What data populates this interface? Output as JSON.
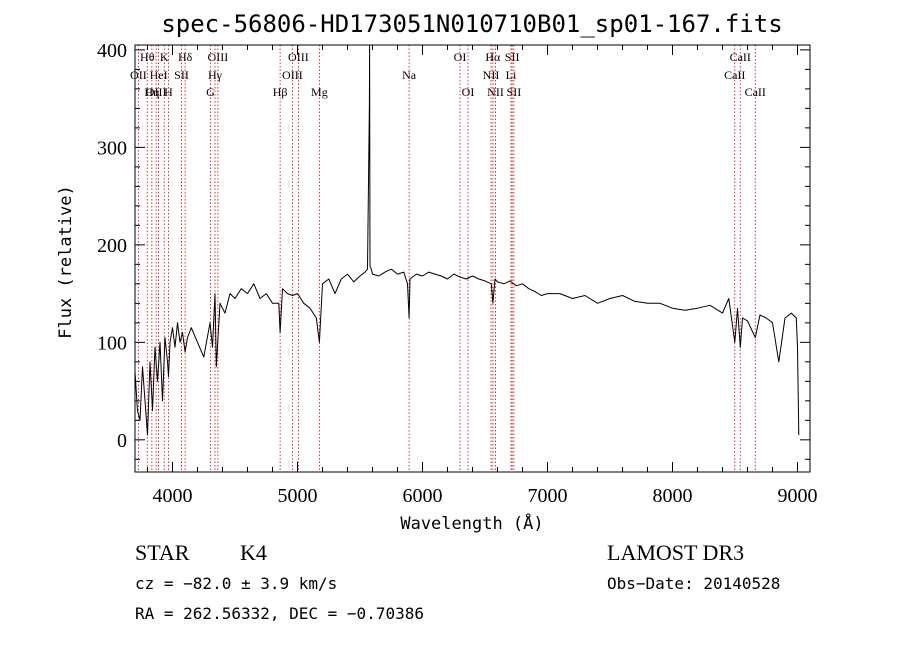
{
  "chart_data": {
    "type": "line",
    "title": "spec-56806-HD173051N010710B01_sp01-167.fits",
    "xlabel": "Wavelength (Å)",
    "ylabel": "Flux (relative)",
    "xlim": [
      3700,
      9100
    ],
    "ylim": [
      -33,
      405
    ],
    "x_ticks": [
      4000,
      5000,
      6000,
      7000,
      8000,
      9000
    ],
    "x_tick_labels": [
      "4000",
      "5000",
      "6000",
      "7000",
      "8000",
      "9000"
    ],
    "y_ticks": [
      0,
      100,
      200,
      300,
      400
    ],
    "y_tick_labels": [
      "0",
      "100",
      "200",
      "300",
      "400"
    ],
    "series": [
      {
        "name": "spectrum",
        "x": [
          3700,
          3720,
          3740,
          3760,
          3780,
          3800,
          3820,
          3840,
          3860,
          3880,
          3900,
          3920,
          3940,
          3960,
          3968,
          3980,
          4000,
          4020,
          4040,
          4060,
          4080,
          4101,
          4120,
          4150,
          4200,
          4250,
          4300,
          4320,
          4340,
          4350,
          4380,
          4420,
          4460,
          4500,
          4550,
          4600,
          4650,
          4700,
          4750,
          4800,
          4850,
          4861,
          4880,
          4920,
          4960,
          5000,
          5050,
          5100,
          5150,
          5175,
          5200,
          5250,
          5300,
          5350,
          5400,
          5450,
          5500,
          5540,
          5560,
          5575,
          5577,
          5580,
          5590,
          5600,
          5650,
          5700,
          5750,
          5800,
          5850,
          5880,
          5893,
          5900,
          5950,
          6000,
          6050,
          6100,
          6150,
          6200,
          6250,
          6300,
          6350,
          6400,
          6450,
          6500,
          6550,
          6563,
          6580,
          6600,
          6650,
          6700,
          6750,
          6800,
          6850,
          6900,
          6950,
          7000,
          7100,
          7200,
          7300,
          7400,
          7500,
          7600,
          7700,
          7800,
          7900,
          8000,
          8100,
          8200,
          8300,
          8400,
          8450,
          8498,
          8520,
          8542,
          8560,
          8600,
          8662,
          8700,
          8750,
          8800,
          8850,
          8900,
          8950,
          8990,
          9000,
          9010
        ],
        "values": [
          70,
          30,
          20,
          75,
          40,
          5,
          80,
          30,
          95,
          60,
          100,
          40,
          105,
          80,
          65,
          100,
          115,
          95,
          120,
          100,
          110,
          90,
          105,
          115,
          100,
          85,
          120,
          95,
          150,
          75,
          140,
          130,
          150,
          145,
          155,
          150,
          160,
          145,
          150,
          140,
          140,
          110,
          155,
          150,
          148,
          150,
          140,
          135,
          125,
          100,
          160,
          165,
          150,
          165,
          170,
          162,
          168,
          172,
          175,
          345,
          405,
          178,
          175,
          170,
          168,
          172,
          175,
          170,
          172,
          160,
          125,
          165,
          170,
          168,
          172,
          170,
          168,
          165,
          170,
          167,
          165,
          168,
          165,
          163,
          160,
          140,
          165,
          162,
          160,
          163,
          158,
          160,
          155,
          152,
          148,
          150,
          150,
          145,
          148,
          140,
          145,
          148,
          142,
          140,
          140,
          135,
          133,
          135,
          138,
          130,
          145,
          100,
          135,
          95,
          125,
          122,
          105,
          128,
          125,
          120,
          80,
          125,
          130,
          125,
          95,
          5
        ]
      }
    ],
    "spectral_lines": [
      {
        "label": "Hθ",
        "wavelength": 3798,
        "row": 0
      },
      {
        "label": "OII",
        "wavelength": 3727,
        "row": 1
      },
      {
        "label": "HeI",
        "wavelength": 3889,
        "row": 1
      },
      {
        "label": "SII",
        "wavelength": 4072,
        "row": 1
      },
      {
        "label": "OIII",
        "wavelength": 3869,
        "row": 2
      },
      {
        "label": "Hη",
        "wavelength": 3835,
        "row": 2
      },
      {
        "label": "K",
        "wavelength": 3934,
        "row": 0
      },
      {
        "label": "H",
        "wavelength": 3968,
        "row": 2
      },
      {
        "label": "Hδ",
        "wavelength": 4101,
        "row": 0
      },
      {
        "label": "OIII",
        "wavelength": 4363,
        "row": 0
      },
      {
        "label": "Hγ",
        "wavelength": 4340,
        "row": 1
      },
      {
        "label": "G",
        "wavelength": 4304,
        "row": 2
      },
      {
        "label": "OIII",
        "wavelength": 5007,
        "row": 0
      },
      {
        "label": "OIII",
        "wavelength": 4959,
        "row": 1
      },
      {
        "label": "Hβ",
        "wavelength": 4861,
        "row": 2
      },
      {
        "label": "Mg",
        "wavelength": 5175,
        "row": 2
      },
      {
        "label": "Na",
        "wavelength": 5893,
        "row": 1
      },
      {
        "label": "OI",
        "wavelength": 6300,
        "row": 0
      },
      {
        "label": "OI",
        "wavelength": 6364,
        "row": 2
      },
      {
        "label": "Hα",
        "wavelength": 6563,
        "row": 0
      },
      {
        "label": "SII",
        "wavelength": 6717,
        "row": 0
      },
      {
        "label": "NII",
        "wavelength": 6548,
        "row": 1
      },
      {
        "label": "Li",
        "wavelength": 6708,
        "row": 1
      },
      {
        "label": "NII",
        "wavelength": 6584,
        "row": 2
      },
      {
        "label": "SII",
        "wavelength": 6731,
        "row": 2
      },
      {
        "label": "CaII",
        "wavelength": 8542,
        "row": 0
      },
      {
        "label": "CaII",
        "wavelength": 8498,
        "row": 1
      },
      {
        "label": "CaII",
        "wavelength": 8662,
        "row": 2
      }
    ]
  },
  "info": {
    "class_label": "STAR",
    "subclass": "K4",
    "survey": "LAMOST DR3",
    "cz": "cz = −82.0 ± 3.9 km/s",
    "obs_date": "Obs−Date: 20140528",
    "radec": "RA = 262.56332, DEC =  −0.70386"
  },
  "colors": {
    "spectrum": "#000000",
    "line_marker": "#cc0000",
    "axis": "#000000"
  }
}
